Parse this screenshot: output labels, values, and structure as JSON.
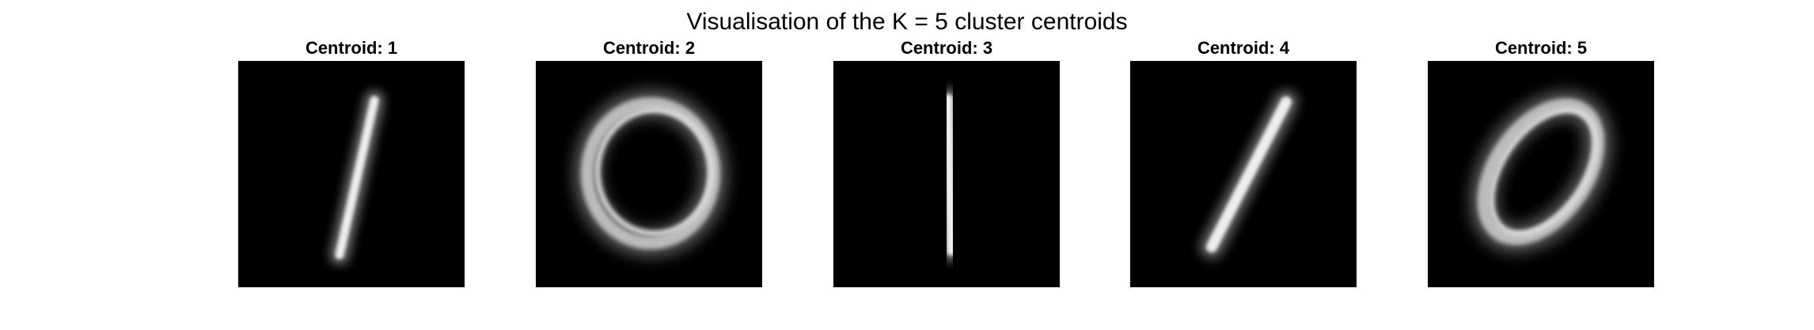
{
  "figure": {
    "title": "Visualisation of the K = 5 cluster centroids"
  },
  "panels": [
    {
      "title": "Centroid: 1",
      "shape": "thin-slanted-stroke"
    },
    {
      "title": "Centroid: 2",
      "shape": "round-ring"
    },
    {
      "title": "Centroid: 3",
      "shape": "vertical-stroke"
    },
    {
      "title": "Centroid: 4",
      "shape": "diagonal-stroke"
    },
    {
      "title": "Centroid: 5",
      "shape": "tilted-ellipse-ring"
    }
  ],
  "colors": {
    "background": "#ffffff",
    "image_background": "#000000",
    "stroke": "#e6e6e6"
  }
}
